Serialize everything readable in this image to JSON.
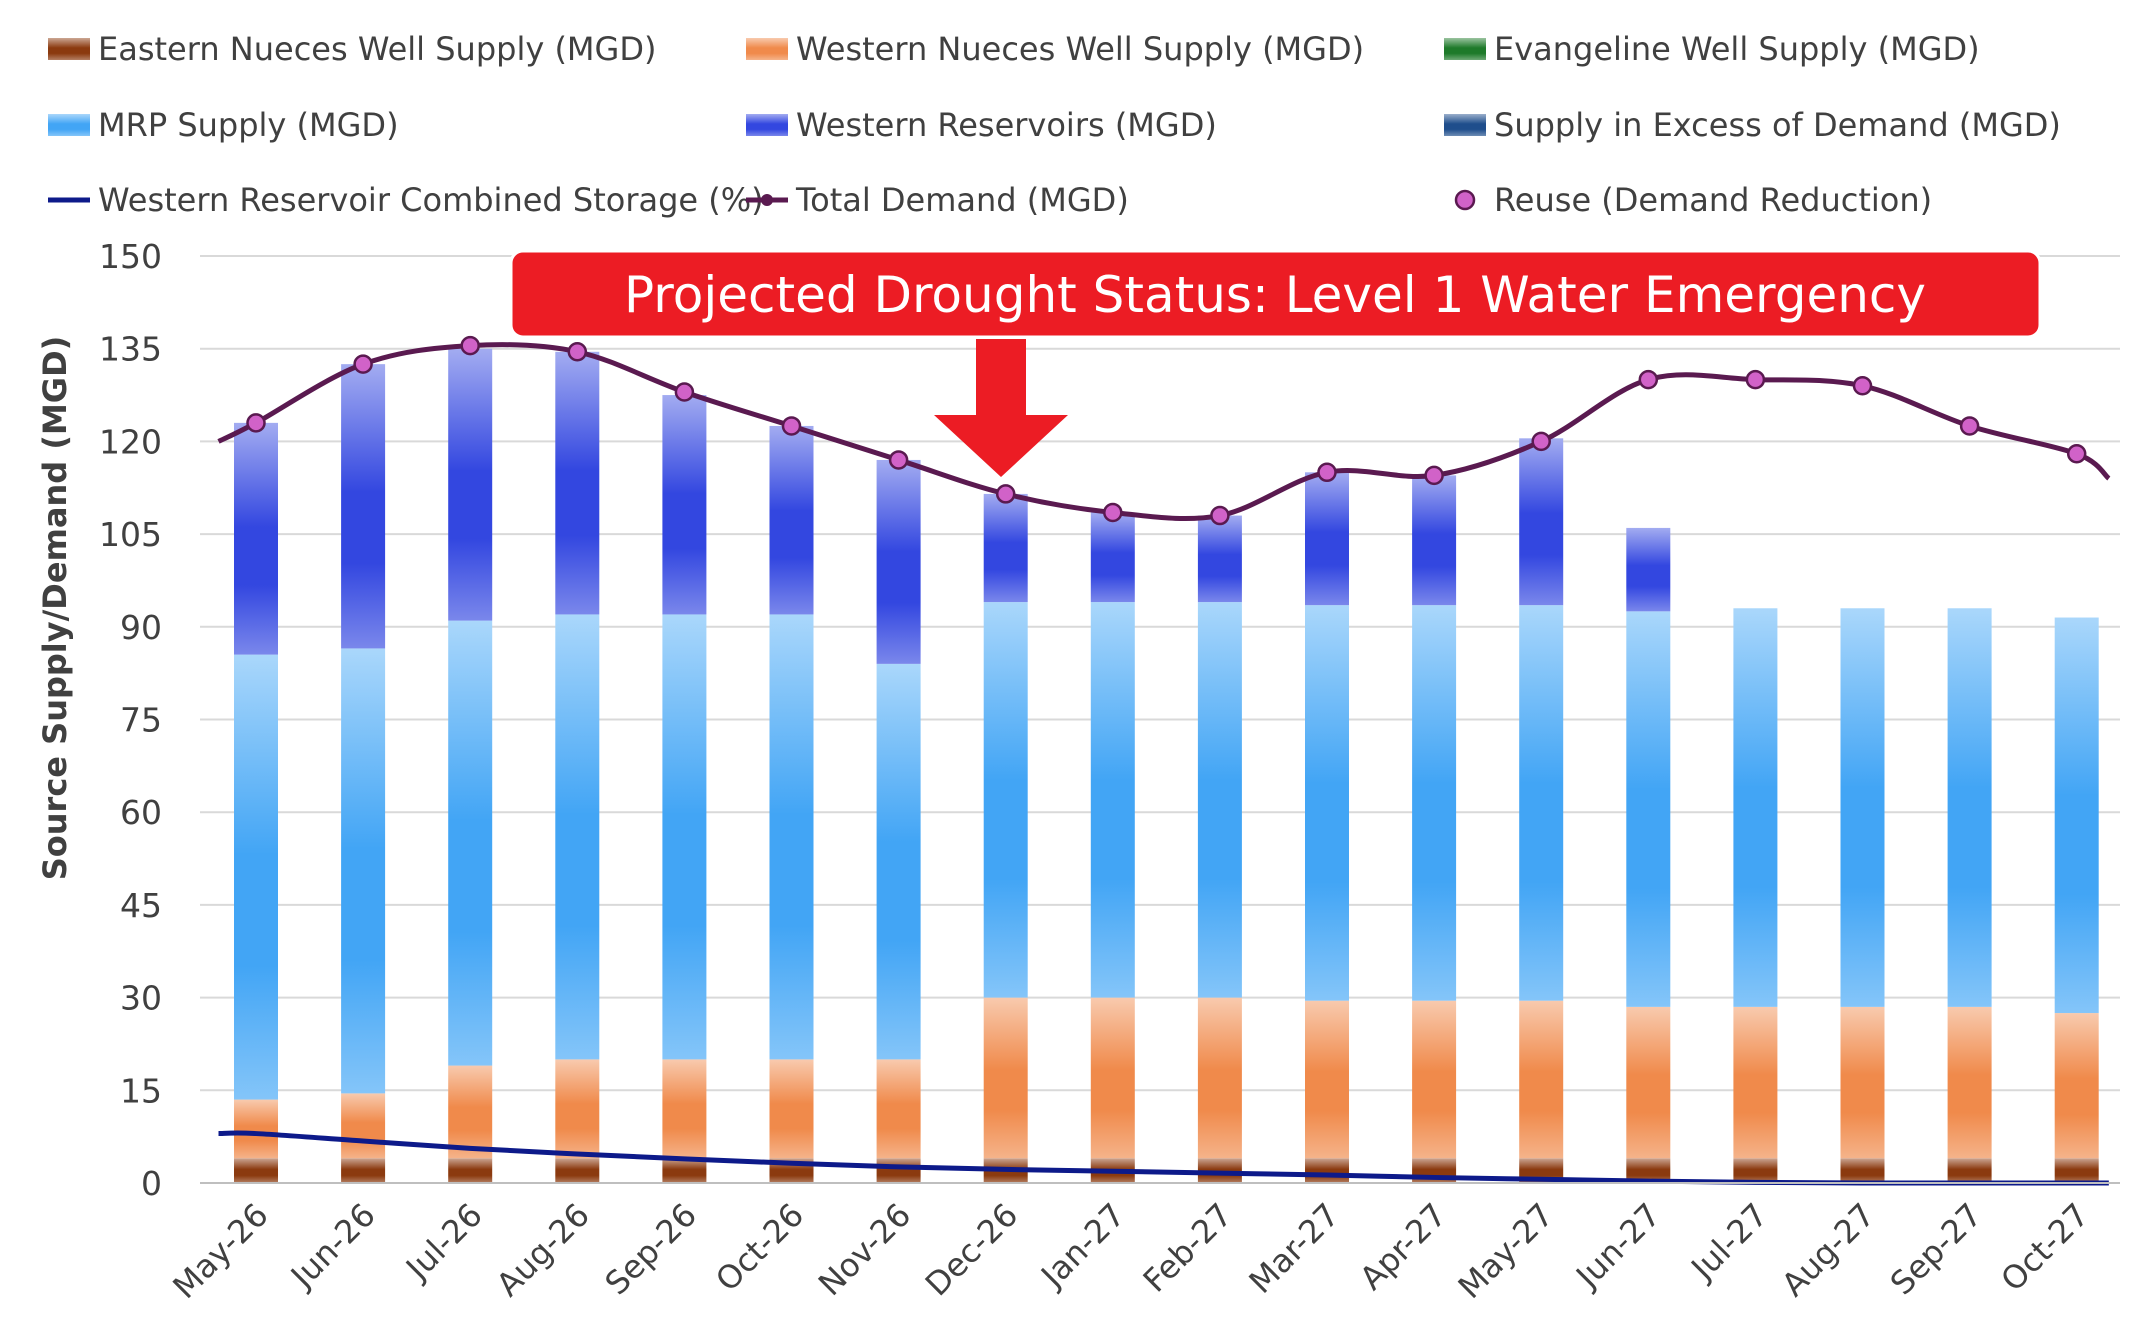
{
  "chart_data": {
    "type": "bar",
    "title": "",
    "xlabel": "",
    "ylabel": "Source Supply/Demand (MGD)",
    "ylim": [
      0,
      150
    ],
    "yticks": [
      "0",
      "15",
      "30",
      "45",
      "60",
      "75",
      "90",
      "105",
      "120",
      "135",
      "150"
    ],
    "grid": true,
    "legend_position": "top",
    "annotation": "Projected Drought Status: Level 1 Water Emergency",
    "annotation_target": "Dec-26",
    "categories": [
      "May-26",
      "Jun-26",
      "Jul-26",
      "Aug-26",
      "Sep-26",
      "Oct-26",
      "Nov-26",
      "Dec-26",
      "Jan-27",
      "Feb-27",
      "Mar-27",
      "Apr-27",
      "May-27",
      "Jun-27",
      "Jul-27",
      "Aug-27",
      "Sep-27",
      "Oct-27"
    ],
    "stacked_series": [
      {
        "name": "Eastern Nueces Well Supply (MGD)",
        "color": "#8b3a0f",
        "values": [
          4,
          4,
          4,
          4,
          4,
          4,
          4,
          4,
          4,
          4,
          4,
          4,
          4,
          4,
          4,
          4,
          4,
          4
        ]
      },
      {
        "name": "Western Nueces Well Supply (MGD)",
        "color": "#f08a4b",
        "values": [
          9.5,
          10.5,
          15,
          16,
          16,
          16,
          16,
          26,
          26,
          26,
          25.5,
          25.5,
          25.5,
          24.5,
          24.5,
          24.5,
          24.5,
          23.5
        ]
      },
      {
        "name": "Evangeline Well Supply (MGD)",
        "color": "#1e7a2a",
        "values": [
          0,
          0,
          0,
          0,
          0,
          0,
          0,
          0,
          0,
          0,
          0,
          0,
          0,
          0,
          0,
          0,
          0,
          0
        ]
      },
      {
        "name": "MRP Supply (MGD)",
        "color": "#42a5f5",
        "values": [
          72,
          72,
          72,
          72,
          72,
          72,
          64,
          64,
          64,
          64,
          64,
          64,
          64,
          64,
          64.5,
          64.5,
          64.5,
          64
        ]
      },
      {
        "name": "Western Reservoirs (MGD)",
        "color": "#3347e0",
        "values": [
          37.5,
          46,
          44,
          42.5,
          35.5,
          30.5,
          33,
          17.5,
          14.5,
          14,
          21.5,
          21,
          27,
          13.5,
          0,
          0,
          0,
          0
        ]
      },
      {
        "name": "Supply in Excess of Demand (MGD)",
        "color": "#1f4e8c",
        "values": [
          0,
          0,
          0,
          0,
          0,
          0,
          0,
          0,
          0,
          0,
          0,
          0,
          0,
          0,
          0,
          0,
          0,
          0
        ]
      }
    ],
    "line_series": [
      {
        "name": "Western Reservoir Combined Storage (%)",
        "color": "#0d1a8a",
        "x": [
          -0.35,
          0,
          1,
          2,
          3,
          4,
          5,
          6,
          7,
          8,
          9,
          10,
          11,
          12,
          13,
          14,
          15,
          16,
          17,
          17.3
        ],
        "values": [
          8,
          8,
          6.8,
          5.6,
          4.7,
          3.9,
          3.2,
          2.6,
          2.2,
          1.9,
          1.6,
          1.3,
          0.9,
          0.6,
          0.3,
          0.1,
          0,
          0,
          0,
          0
        ]
      },
      {
        "name": "Total Demand (MGD)",
        "color": "#5a1a50",
        "x": [
          -0.35,
          0,
          1,
          2,
          3,
          4,
          5,
          6,
          7,
          8,
          9,
          10,
          11,
          12,
          13,
          14,
          15,
          16,
          17,
          17.3
        ],
        "values": [
          120,
          123,
          132.5,
          135.5,
          134.5,
          128,
          122.5,
          117,
          111.5,
          108.5,
          108,
          115,
          114.5,
          120,
          130,
          130,
          129,
          122.5,
          118,
          114
        ]
      }
    ],
    "point_series": [
      {
        "name": "Reuse (Demand Reduction)",
        "color": "#d162c8",
        "values": [
          123,
          132.5,
          135.5,
          134.5,
          128,
          122.5,
          117,
          111.5,
          108.5,
          108,
          115,
          114.5,
          120,
          130,
          130,
          129,
          122.5,
          118
        ]
      }
    ],
    "legend": [
      {
        "label": "Eastern Nueces Well Supply (MGD)",
        "kind": "swatch",
        "color": "#8b3a0f"
      },
      {
        "label": "Western Nueces Well Supply (MGD)",
        "kind": "swatch",
        "color": "#f08a4b"
      },
      {
        "label": "Evangeline Well Supply (MGD)",
        "kind": "swatch",
        "color": "#1e7a2a"
      },
      {
        "label": "MRP Supply (MGD)",
        "kind": "swatch",
        "color": "#42a5f5"
      },
      {
        "label": "Western Reservoirs (MGD)",
        "kind": "swatch",
        "color": "#3347e0"
      },
      {
        "label": "Supply in Excess of Demand (MGD)",
        "kind": "swatch",
        "color": "#1f4e8c"
      },
      {
        "label": "Western Reservoir Combined Storage (%)",
        "kind": "line",
        "color": "#0d1a8a"
      },
      {
        "label": "Total Demand (MGD)",
        "kind": "line-marker",
        "color": "#5a1a50"
      },
      {
        "label": "Reuse (Demand Reduction)",
        "kind": "marker",
        "color": "#d162c8"
      }
    ],
    "banner_color": "#ec1c24"
  }
}
